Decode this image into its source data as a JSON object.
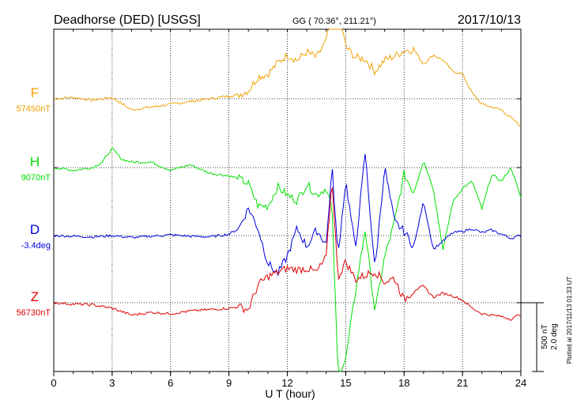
{
  "header": {
    "title": "Deadhorse (DED)  [USGS]",
    "coords": "GG ( 70.36°, 211.21°)",
    "date": "2017/10/13"
  },
  "scale": {
    "line1": "500 nT",
    "line2": "2.0 deg"
  },
  "plotted": "Plotted at 2017/11/13 01:33 UT",
  "chart_data": {
    "type": "line",
    "xlabel": "U T (hour)",
    "xlim": [
      0,
      24
    ],
    "xticks": [
      "0",
      "3",
      "6",
      "9",
      "12",
      "15",
      "18",
      "21",
      "24"
    ],
    "grid": true,
    "scale_nT_per_band": 500,
    "series": [
      {
        "name": "F",
        "baseline_label": "57450nT",
        "color": "#f0a000",
        "x": [
          0,
          1,
          2,
          3,
          4,
          5,
          6,
          7,
          8,
          9,
          9.5,
          10,
          10.5,
          11,
          11.5,
          12,
          12.5,
          13,
          13.5,
          14,
          14.3,
          14.6,
          15,
          15.5,
          16,
          16.5,
          17,
          17.5,
          18,
          18.5,
          19,
          19.5,
          20,
          20.5,
          21,
          21.5,
          22,
          22.5,
          23,
          23.5,
          24
        ],
        "values": [
          0,
          10,
          -10,
          10,
          -80,
          -60,
          -40,
          -20,
          0,
          20,
          30,
          60,
          160,
          180,
          260,
          320,
          280,
          340,
          300,
          420,
          700,
          650,
          380,
          300,
          290,
          200,
          280,
          310,
          350,
          360,
          250,
          320,
          280,
          200,
          180,
          40,
          -40,
          -60,
          -80,
          -140,
          -200
        ]
      },
      {
        "name": "H",
        "baseline_label": "9070nT",
        "color": "#00e000",
        "x": [
          0,
          1,
          2,
          2.5,
          3,
          3.5,
          4,
          5,
          6,
          7,
          8,
          9,
          9.5,
          10,
          10.5,
          11,
          11.5,
          12,
          12.5,
          13,
          13.5,
          14,
          14.3,
          14.6,
          15,
          15.5,
          16,
          16.5,
          17,
          17.5,
          18,
          18.5,
          19,
          19.5,
          20,
          20.5,
          21,
          21.5,
          22,
          22.5,
          23,
          23.5,
          24
        ],
        "values": [
          0,
          -20,
          0,
          40,
          140,
          60,
          40,
          40,
          -20,
          20,
          -40,
          -60,
          -80,
          -120,
          -280,
          -280,
          -140,
          -200,
          -240,
          -120,
          -200,
          -150,
          -300,
          -1500,
          -1400,
          -900,
          -450,
          -1050,
          -650,
          -400,
          -50,
          -180,
          50,
          -150,
          -600,
          -250,
          -150,
          -100,
          -300,
          -50,
          -100,
          0,
          -220
        ]
      },
      {
        "name": "D",
        "baseline_label": "-3.4deg",
        "color": "#0000e0",
        "x": [
          0,
          1,
          2,
          3,
          4,
          5,
          6,
          7,
          8,
          9,
          9.5,
          10,
          10.5,
          11,
          11.5,
          12,
          12.5,
          13,
          13.5,
          14,
          14.3,
          14.6,
          15,
          15.5,
          16,
          16.5,
          17,
          17.5,
          18,
          18.5,
          19,
          19.5,
          20,
          20.5,
          21,
          21.5,
          22,
          22.5,
          23,
          23.5,
          24
        ],
        "values": [
          0,
          -5,
          -10,
          0,
          -15,
          -5,
          5,
          -5,
          -10,
          10,
          50,
          200,
          50,
          -200,
          -280,
          -150,
          50,
          -80,
          40,
          -60,
          500,
          -150,
          400,
          -100,
          600,
          -250,
          500,
          100,
          30,
          -80,
          250,
          -100,
          -40,
          20,
          30,
          50,
          20,
          40,
          10,
          -20,
          0
        ]
      },
      {
        "name": "Z",
        "baseline_label": "56730nT",
        "color": "#e00000",
        "x": [
          0,
          1,
          2,
          3,
          4,
          5,
          6,
          7,
          8,
          9,
          9.5,
          10,
          10.5,
          11,
          11.5,
          12,
          12.5,
          13,
          13.5,
          14,
          14.3,
          14.6,
          15,
          15.5,
          16,
          16.5,
          17,
          17.5,
          18,
          18.5,
          19,
          19.5,
          20,
          20.5,
          21,
          21.5,
          22,
          22.5,
          23,
          23.5,
          24
        ],
        "values": [
          0,
          -10,
          -15,
          -40,
          -90,
          -70,
          -80,
          -60,
          -50,
          -40,
          -30,
          -50,
          130,
          190,
          220,
          250,
          240,
          250,
          220,
          330,
          900,
          180,
          300,
          170,
          200,
          230,
          150,
          180,
          20,
          90,
          120,
          40,
          70,
          50,
          20,
          -40,
          -80,
          -90,
          -100,
          -120,
          -80
        ]
      }
    ]
  }
}
